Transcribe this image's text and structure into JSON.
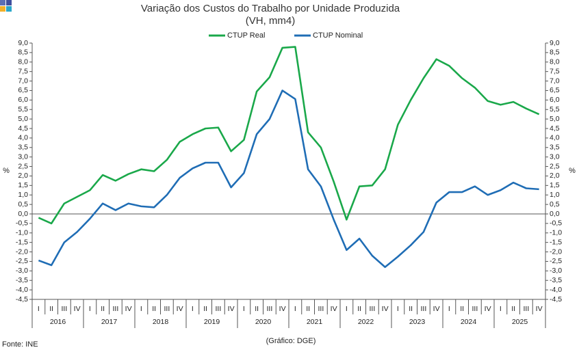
{
  "chart_data": {
    "type": "line",
    "title": "Variação dos Custos do Trabalho por Unidade Produzida",
    "subtitle": "(VH, mm4)",
    "y_label": "%",
    "source": "Fonte: INE",
    "credit": "(Gráfico: DGE)",
    "categories": [
      "I",
      "II",
      "III",
      "IV",
      "I",
      "II",
      "III",
      "IV",
      "I",
      "II",
      "III",
      "IV",
      "I",
      "II",
      "III",
      "IV",
      "I",
      "II",
      "III",
      "IV",
      "I",
      "II",
      "III",
      "IV",
      "I",
      "II",
      "III",
      "IV",
      "I",
      "II",
      "III",
      "IV",
      "I",
      "II",
      "III",
      "IV",
      "I",
      "II",
      "III",
      "IV"
    ],
    "years": [
      "2016",
      "2017",
      "2018",
      "2019",
      "2020",
      "2021",
      "2022",
      "2023",
      "2024",
      "2025"
    ],
    "series": [
      {
        "name": "CTUP Real",
        "color": "#1aa84a",
        "values": [
          -0.2,
          -0.5,
          0.55,
          0.9,
          1.25,
          2.05,
          1.75,
          2.1,
          2.35,
          2.25,
          2.85,
          3.8,
          4.2,
          4.5,
          4.55,
          3.3,
          3.9,
          6.45,
          7.2,
          8.75,
          8.8,
          4.3,
          3.5,
          1.7,
          -0.3,
          1.45,
          1.5,
          2.35,
          4.7,
          6.0,
          7.15,
          8.15,
          7.8,
          7.15,
          6.65,
          5.95,
          5.75,
          5.9,
          5.55,
          5.25
        ]
      },
      {
        "name": "CTUP Nominal",
        "color": "#1f6db5",
        "values": [
          -2.45,
          -2.7,
          -1.5,
          -0.95,
          -0.25,
          0.55,
          0.2,
          0.55,
          0.4,
          0.35,
          1.0,
          1.9,
          2.4,
          2.7,
          2.7,
          1.4,
          2.15,
          4.2,
          5.0,
          6.5,
          6.05,
          2.35,
          1.45,
          -0.3,
          -1.9,
          -1.3,
          -2.2,
          -2.8,
          -2.25,
          -1.65,
          -0.95,
          0.6,
          1.15,
          1.15,
          1.45,
          1.0,
          1.25,
          1.65,
          1.35,
          1.3
        ]
      }
    ],
    "ylim": [
      -4.5,
      9.0
    ],
    "yticks": [
      {
        "value": -4.5,
        "label": "-4,5"
      },
      {
        "value": -4,
        "label": "-4,0"
      },
      {
        "value": -3.5,
        "label": "-3,5"
      },
      {
        "value": -3,
        "label": "-3,0"
      },
      {
        "value": -2.5,
        "label": "-2,5"
      },
      {
        "value": -2,
        "label": "-2,0"
      },
      {
        "value": -1.5,
        "label": "-1,5"
      },
      {
        "value": -1,
        "label": "-1,0"
      },
      {
        "value": -0.5,
        "label": "-0,5"
      },
      {
        "value": 0,
        "label": "0,0"
      },
      {
        "value": 0.5,
        "label": "0,5"
      },
      {
        "value": 1,
        "label": "1,0"
      },
      {
        "value": 1.5,
        "label": "1,5"
      },
      {
        "value": 2,
        "label": "2,0"
      },
      {
        "value": 2.5,
        "label": "2,5"
      },
      {
        "value": 3,
        "label": "3,0"
      },
      {
        "value": 3.5,
        "label": "3,5"
      },
      {
        "value": 4,
        "label": "4,0"
      },
      {
        "value": 4.5,
        "label": "4,5"
      },
      {
        "value": 5,
        "label": "5,0"
      },
      {
        "value": 5.5,
        "label": "5,5"
      },
      {
        "value": 6,
        "label": "6,0"
      },
      {
        "value": 6.5,
        "label": "6,5"
      },
      {
        "value": 7,
        "label": "7,0"
      },
      {
        "value": 7.5,
        "label": "7,5"
      },
      {
        "value": 8,
        "label": "8,0"
      },
      {
        "value": 8.5,
        "label": "8,5"
      },
      {
        "value": 9,
        "label": "9,0"
      }
    ],
    "grid": false
  }
}
